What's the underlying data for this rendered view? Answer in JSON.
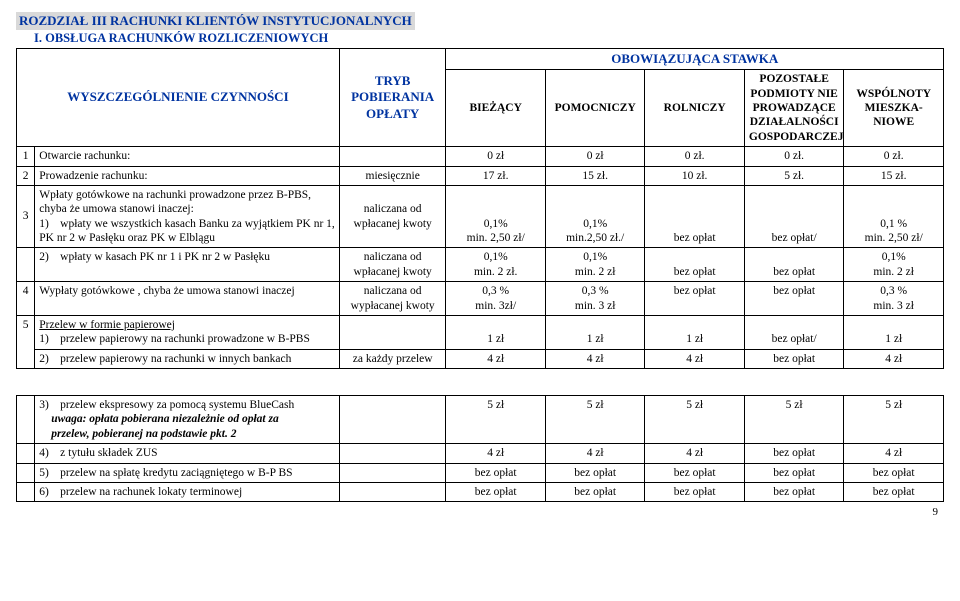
{
  "section_title": "ROZDZIAŁ III  RACHUNKI KLIENTÓW INSTYTUCJONALNYCH",
  "sub_title": "I. OBSŁUGA RACHUNKÓW ROZLICZENIOWYCH",
  "header": {
    "col_desc": "WYSZCZEGÓLNIENIE CZYNNOŚCI",
    "col_mode": "TRYB POBIERANIA OPŁATY",
    "col_group": "OBOWIĄZUJĄCA STAWKA",
    "rates": {
      "biezacy": "BIEŻĄCY",
      "pomocniczy": "POMOCNICZY",
      "rolniczy": "ROLNICZY",
      "pozostale": "POZOSTAŁE PODMIOTY NIE PROWADZĄCE DZIAŁALNOŚCI GOSPODARCZEJ",
      "wspolnoty": "WSPÓLNOTY MIESZKA-NIOWE"
    }
  },
  "r1": {
    "num": "1",
    "desc": "Otwarcie rachunku:",
    "b": "0 zł",
    "p": "0 zł",
    "r": "0 zł.",
    "po": "0 zł.",
    "w": "0 zł."
  },
  "r2": {
    "num": "2",
    "desc": "Prowadzenie rachunku:",
    "mode": "miesięcznie",
    "b": "17 zł.",
    "p": "15 zł.",
    "r": "10 zł.",
    "po": "5 zł.",
    "w": "15 zł."
  },
  "r3": {
    "num": "3",
    "intro": "Wpłaty gotówkowe na rachunki prowadzone przez B-PBS, chyba że umowa stanowi inaczej:",
    "sub1_num": "1)",
    "sub1_desc": "wpłaty we wszystkich kasach Banku za wyjątkiem PK nr 1, PK nr 2 w Pasłęku oraz PK w Elblągu",
    "mode": "naliczana od wpłacanej kwoty",
    "b": "0,1%\nmin. 2,50 zł/",
    "p": "0,1%\nmin.2,50 zł./",
    "r": "bez opłat",
    "po": "bez opłat/",
    "w": "0,1 %\nmin. 2,50 zł/"
  },
  "r3b": {
    "sub_num": "2)",
    "sub_desc": "wpłaty w kasach PK nr 1 i PK nr 2 w Pasłęku",
    "mode": "naliczana od wpłacanej kwoty",
    "b": "0,1%\nmin. 2 zł.",
    "p": "0,1%\nmin. 2 zł",
    "r": "bez opłat",
    "po": "bez opłat",
    "w": "0,1%\nmin. 2 zł"
  },
  "r4": {
    "num": "4",
    "desc": "Wypłaty gotówkowe , chyba że umowa stanowi inaczej",
    "mode": "naliczana od wypłacanej kwoty",
    "b": "0,3 %\nmin. 3zł/",
    "p": "0,3 %\nmin. 3 zł",
    "r": "bez opłat",
    "po": "bez opłat",
    "w": "0,3 %\nmin. 3 zł"
  },
  "r5": {
    "num": "5",
    "desc": "Przelew w formie papierowej",
    "sub1_num": "1)",
    "sub1_desc": "przelew papierowy na rachunki prowadzone w B-PBS",
    "s1_b": "1 zł",
    "s1_p": "1 zł",
    "s1_r": "1 zł",
    "s1_po": "bez opłat/",
    "s1_w": "1 zł",
    "sub2_num": "2)",
    "sub2_desc": "przelew papierowy na rachunki w innych bankach",
    "s2_mode": "za każdy przelew",
    "s2_b": "4 zł",
    "s2_p": "4 zł",
    "s2_r": "4 zł",
    "s2_po": "bez opłat",
    "s2_w": "4 zł",
    "sub3_num": "3)",
    "sub3_desc": "przelew ekspresowy za pomocą systemu BlueCash",
    "sub3_note_l1": "uwaga: opłata pobierana niezależnie od opłat za",
    "sub3_note_l2": "przelew, pobieranej na podstawie pkt. 2",
    "s3_b": "5 zł",
    "s3_p": "5 zł",
    "s3_r": "5 zł",
    "s3_po": "5 zł",
    "s3_w": "5 zł",
    "sub4_num": "4)",
    "sub4_desc": "z tytułu składek ZUS",
    "s4_b": "4 zł",
    "s4_p": "4 zł",
    "s4_r": "4 zł",
    "s4_po": "bez opłat",
    "s4_w": "4 zł",
    "sub5_num": "5)",
    "sub5_desc": "przelew na spłatę kredytu zaciągniętego w B-P BS",
    "s5_b": "bez opłat",
    "s5_p": "bez opłat",
    "s5_r": "bez opłat",
    "s5_po": "bez opłat",
    "s5_w": "bez opłat",
    "sub6_num": "6)",
    "sub6_desc": "przelew na rachunek lokaty terminowej",
    "s6_b": "bez opłat",
    "s6_p": "bez opłat",
    "s6_r": "bez opłat",
    "s6_po": "bez opłat",
    "s6_w": "bez opłat"
  },
  "page_number": "9"
}
